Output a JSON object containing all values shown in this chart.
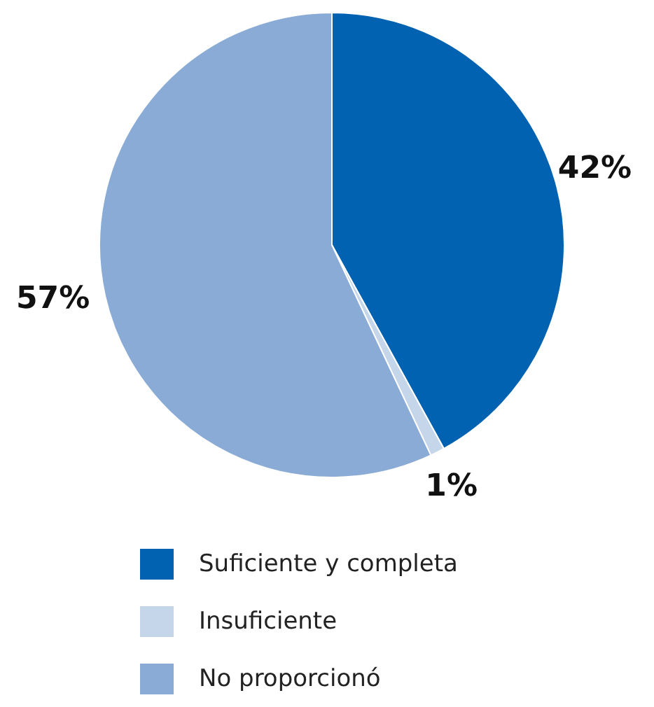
{
  "chart_data": {
    "type": "pie",
    "categories": [
      "Suficiente y completa",
      "Insuficiente",
      "No proporcionó"
    ],
    "values": [
      42,
      1,
      57
    ],
    "colors": [
      "#0062b0",
      "#c5d5ea",
      "#8aabd6"
    ],
    "value_labels": [
      "42%",
      "1%",
      "57%"
    ],
    "legend": "bottom"
  }
}
